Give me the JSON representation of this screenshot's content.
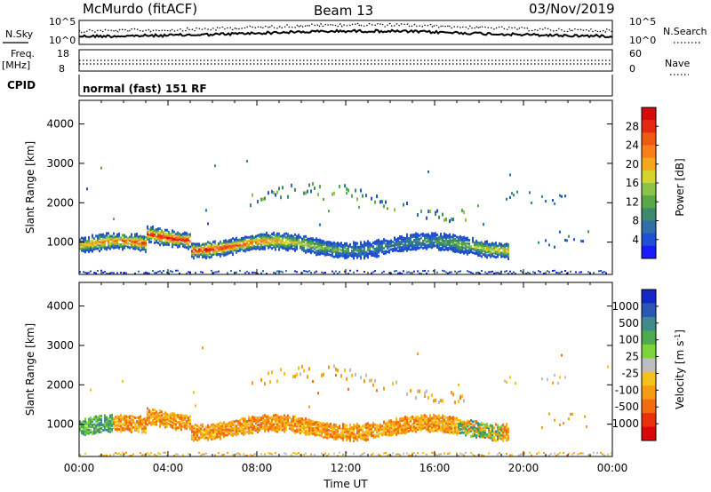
{
  "header": {
    "station": "McMurdo (fitACF)",
    "beam": "Beam 13",
    "date": "03/Nov/2019"
  },
  "top_panels": {
    "nsky_label": "N.Sky",
    "nsearch_label": "N.Search",
    "noise_top": "10^5",
    "noise_bottom": "10^0",
    "freq_label": "Freq.",
    "freq_unit": "[MHz]",
    "freq_top": "18",
    "freq_bottom": "8",
    "nave_label": "Nave",
    "nave_top": "60",
    "nave_bottom": "0",
    "cpid_label": "CPID",
    "cpid_text": "normal (fast) 151 RF"
  },
  "chart_data": [
    {
      "type": "heatmap",
      "title": "",
      "xlabel": "Time UT",
      "ylabel": "Slant Range [km]",
      "xlim": [
        "00:00",
        "24:00"
      ],
      "ylim": [
        180,
        4600
      ],
      "xticks": [
        "00:00",
        "04:00",
        "08:00",
        "12:00",
        "16:00",
        "20:00",
        "00:00"
      ],
      "yticks": [
        1000,
        2000,
        3000,
        4000
      ],
      "colorbar": {
        "label": "Power [dB]",
        "ticks": [
          "4",
          "8",
          "12",
          "16",
          "20",
          "24",
          "28"
        ],
        "colors": [
          "#1a1aff",
          "#1f4fd6",
          "#2e6fa8",
          "#3f8a6a",
          "#58a84a",
          "#8bc34a",
          "#d7d22e",
          "#f2a81d",
          "#f7801a",
          "#ef5a12",
          "#e32a10",
          "#d60c0c"
        ]
      },
      "features": [
        {
          "range_km": 1000,
          "hours": [
            0,
            19
          ],
          "power_db": [
            12,
            28
          ],
          "description_values": "main band"
        },
        {
          "range_km": 2100,
          "hours": [
            7.5,
            17.5
          ],
          "power_db": [
            4,
            16
          ]
        },
        {
          "range_km": 2000,
          "hours": [
            19,
            22
          ],
          "power_db": [
            4,
            10
          ]
        }
      ]
    },
    {
      "type": "heatmap",
      "title": "",
      "xlabel": "Time UT",
      "ylabel": "Slant Range [km]",
      "xlim": [
        "00:00",
        "24:00"
      ],
      "ylim": [
        180,
        4600
      ],
      "xticks": [
        "00:00",
        "04:00",
        "08:00",
        "12:00",
        "16:00",
        "20:00",
        "00:00"
      ],
      "yticks": [
        1000,
        2000,
        3000,
        4000
      ],
      "colorbar": {
        "label": "Velocity [m s^-1]",
        "ticks": [
          "1000",
          "500",
          "100",
          "25",
          "-25",
          "-100",
          "-500",
          "-1000"
        ],
        "colors": [
          "#1428c8",
          "#2a58b4",
          "#3f8a8a",
          "#4eaa4e",
          "#7ed33a",
          "#bdbdbd",
          "#f2c21a",
          "#f79a14",
          "#f26b10",
          "#e8300c",
          "#d80808"
        ]
      },
      "features": [
        {
          "range_km": 1000,
          "hours": [
            0,
            19.5
          ],
          "velocity_ms": [
            -500,
            100
          ]
        },
        {
          "range_km": 2100,
          "hours": [
            8,
            17
          ],
          "velocity_ms": [
            -500,
            25
          ]
        }
      ]
    }
  ]
}
